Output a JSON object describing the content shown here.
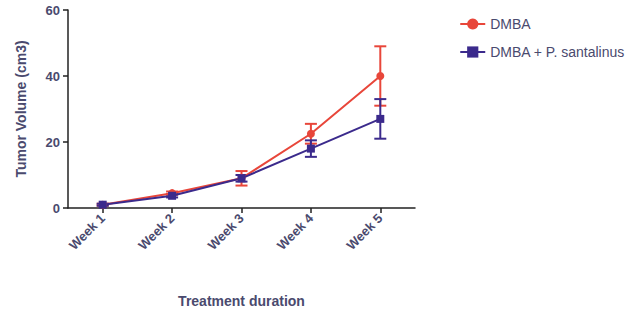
{
  "chart_data": {
    "type": "line",
    "x_label": "Treatment duration",
    "y_label": "Tumor Volume (cm3)",
    "categories": [
      "Week 1",
      "Week 2",
      "Week 3",
      "Week 4",
      "Week 5"
    ],
    "series": [
      {
        "name": "DMBA",
        "color": "#e8463a",
        "marker": "circle",
        "values": [
          1,
          4.5,
          9,
          22.5,
          40
        ],
        "error": [
          0.3,
          0.5,
          2.2,
          3,
          9
        ]
      },
      {
        "name": "DMBA + P. santalinus",
        "color": "#3b2a8c",
        "marker": "square",
        "values": [
          1,
          3.7,
          9,
          18,
          27
        ],
        "error": [
          0.3,
          0.5,
          1,
          2.5,
          6
        ]
      }
    ],
    "ylim": [
      0,
      60
    ],
    "yticks": [
      0,
      20,
      40,
      60
    ],
    "grid": false,
    "legend": "top right"
  }
}
